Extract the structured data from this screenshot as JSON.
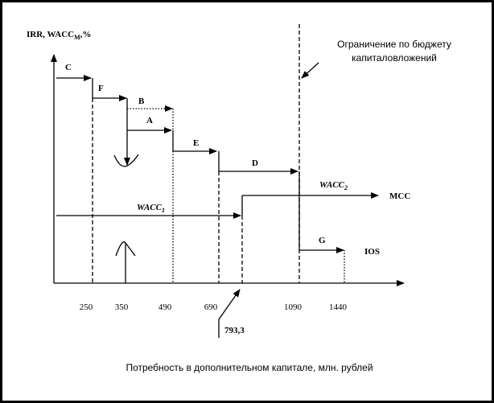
{
  "y_axis_label": {
    "main": "IRR, WACC",
    "sub": "M",
    "tail": ",%"
  },
  "budget_note": [
    "Ограничение по бюджету",
    "капиталовложений"
  ],
  "steps": {
    "C": "C",
    "F": "F",
    "B": "B",
    "A": "A",
    "E": "E",
    "D": "D",
    "G": "G"
  },
  "wacc1": {
    "main": "WACC",
    "sub": "1"
  },
  "wacc2": {
    "main": "WACC",
    "sub": "2"
  },
  "mcc": "MCC",
  "ios": "IOS",
  "x_ticks": [
    "250",
    "350",
    "490",
    "690",
    "1090",
    "1440"
  ],
  "breakpoint": "793,3",
  "caption": "Потребность в дополнительном капитале, млн. рублей"
}
